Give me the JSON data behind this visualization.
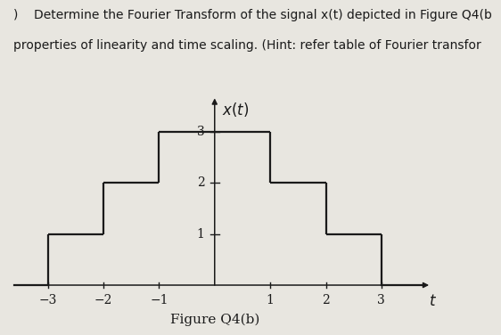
{
  "title": "Figure Q4(b)",
  "ylabel": "x(t)",
  "xlabel": "t",
  "background_color": "#e8e6e0",
  "steps": [
    {
      "x_start": -3,
      "x_end": -2,
      "y": 1
    },
    {
      "x_start": -2,
      "x_end": -1,
      "y": 2
    },
    {
      "x_start": -1,
      "x_end": 1,
      "y": 3
    },
    {
      "x_start": 1,
      "x_end": 2,
      "y": 2
    },
    {
      "x_start": 2,
      "x_end": 3,
      "y": 1
    }
  ],
  "xticks": [
    -3,
    -2,
    -1,
    1,
    2,
    3
  ],
  "yticks": [
    1,
    2,
    3
  ],
  "xlim": [
    -3.7,
    3.9
  ],
  "ylim": [
    0,
    3.7
  ],
  "line_color": "#1a1a1a",
  "line_width": 1.6,
  "tick_fontsize": 10,
  "label_fontsize": 11,
  "caption_fontsize": 11,
  "header_line1": "Determine the Fourier Transform of the signal x(t) depicted in Figure Q4(b",
  "header_line2": "properties of linearity and time scaling. (Hint: refer table of Fourier transfor",
  "header_fontsize": 10
}
